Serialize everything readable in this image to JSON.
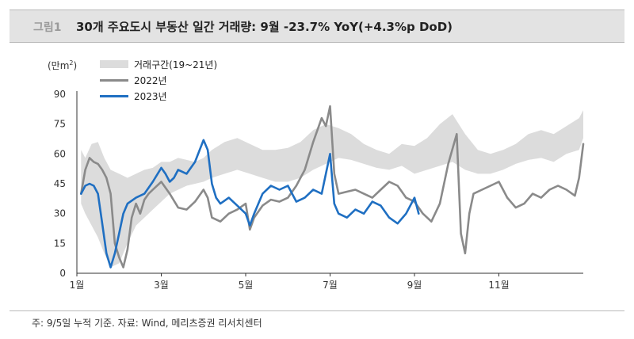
{
  "figure": {
    "number": "그림1",
    "title": "30개 주요도시 부동산 일간 거래량: 9월 -23.7% YoY(+4.3%p DoD)",
    "footnote": "주: 9/5일 누적 기준. 자료: Wind, 메리츠증권 리서치센터"
  },
  "colors": {
    "band": "#dcdcdc",
    "line_2022": "#8a8a8a",
    "line_2023": "#1f6fc2"
  },
  "chart_data": {
    "type": "line",
    "title": "30개 주요도시 부동산 일간 거래량: 9월 -23.7% YoY(+4.3%p DoD)",
    "unit": "(만m²)",
    "ylim": [
      0,
      90
    ],
    "yticks": [
      "0",
      "15",
      "30",
      "45",
      "60",
      "75",
      "90"
    ],
    "xlim": [
      1,
      13
    ],
    "xticks": [
      {
        "label": "1월",
        "value": 1
      },
      {
        "label": "3월",
        "value": 3
      },
      {
        "label": "5월",
        "value": 5
      },
      {
        "label": "7월",
        "value": 7
      },
      {
        "label": "9월",
        "value": 9
      },
      {
        "label": "11월",
        "value": 11
      }
    ],
    "grid": false,
    "legend_position": "top-left",
    "band": {
      "name": "거래구간(19~21년)",
      "x": [
        1.1,
        1.2,
        1.35,
        1.5,
        1.65,
        1.8,
        2.0,
        2.2,
        2.4,
        2.6,
        2.8,
        3.0,
        3.2,
        3.4,
        3.6,
        3.8,
        4.0,
        4.2,
        4.5,
        4.8,
        5.1,
        5.4,
        5.7,
        6.0,
        6.3,
        6.6,
        6.9,
        7.2,
        7.5,
        7.8,
        8.1,
        8.4,
        8.7,
        9.0,
        9.3,
        9.6,
        9.9,
        10.2,
        10.5,
        10.8,
        11.1,
        11.4,
        11.7,
        12.0,
        12.3,
        12.6,
        12.9,
        13.0
      ],
      "upper": [
        62,
        58,
        65,
        66,
        58,
        52,
        50,
        48,
        50,
        52,
        53,
        56,
        56,
        58,
        57,
        56,
        58,
        62,
        66,
        68,
        65,
        62,
        62,
        63,
        66,
        72,
        75,
        73,
        70,
        65,
        62,
        60,
        65,
        64,
        68,
        75,
        80,
        70,
        62,
        60,
        62,
        65,
        70,
        72,
        70,
        74,
        78,
        82
      ],
      "lower": [
        35,
        30,
        24,
        18,
        10,
        3,
        5,
        15,
        24,
        28,
        32,
        36,
        40,
        42,
        44,
        45,
        46,
        48,
        50,
        52,
        50,
        48,
        46,
        46,
        48,
        52,
        55,
        58,
        57,
        55,
        53,
        52,
        54,
        50,
        52,
        54,
        56,
        52,
        50,
        50,
        52,
        55,
        57,
        58,
        56,
        60,
        62,
        68
      ]
    },
    "series": [
      {
        "name": "2022년",
        "x": [
          1.1,
          1.2,
          1.3,
          1.4,
          1.5,
          1.6,
          1.7,
          1.8,
          1.9,
          2.0,
          2.1,
          2.2,
          2.3,
          2.4,
          2.5,
          2.6,
          2.7,
          2.8,
          3.0,
          3.2,
          3.4,
          3.6,
          3.8,
          4.0,
          4.1,
          4.2,
          4.4,
          4.6,
          4.8,
          5.0,
          5.1,
          5.2,
          5.4,
          5.6,
          5.8,
          6.0,
          6.2,
          6.4,
          6.6,
          6.8,
          6.9,
          7.0,
          7.1,
          7.2,
          7.4,
          7.6,
          7.8,
          8.0,
          8.2,
          8.4,
          8.6,
          8.8,
          9.0,
          9.2,
          9.4,
          9.6,
          9.8,
          10.0,
          10.1,
          10.2,
          10.3,
          10.4,
          10.6,
          10.8,
          11.0,
          11.2,
          11.4,
          11.6,
          11.8,
          12.0,
          12.2,
          12.4,
          12.6,
          12.8,
          12.9,
          13.0
        ],
        "values": [
          40,
          52,
          58,
          56,
          55,
          52,
          48,
          40,
          15,
          8,
          3,
          12,
          28,
          35,
          30,
          37,
          40,
          42,
          46,
          40,
          33,
          32,
          36,
          42,
          38,
          28,
          26,
          30,
          32,
          35,
          22,
          28,
          34,
          37,
          36,
          38,
          44,
          52,
          66,
          78,
          74,
          84,
          50,
          40,
          41,
          42,
          40,
          38,
          42,
          46,
          44,
          38,
          36,
          30,
          26,
          35,
          55,
          70,
          20,
          10,
          30,
          40,
          42,
          44,
          46,
          38,
          33,
          35,
          40,
          38,
          42,
          44,
          42,
          39,
          48,
          65
        ]
      },
      {
        "name": "2023년",
        "x": [
          1.1,
          1.2,
          1.3,
          1.4,
          1.5,
          1.6,
          1.7,
          1.8,
          1.9,
          2.0,
          2.1,
          2.2,
          2.4,
          2.6,
          2.8,
          3.0,
          3.1,
          3.2,
          3.3,
          3.4,
          3.6,
          3.8,
          4.0,
          4.1,
          4.2,
          4.3,
          4.4,
          4.6,
          4.8,
          5.0,
          5.1,
          5.2,
          5.4,
          5.6,
          5.8,
          6.0,
          6.2,
          6.4,
          6.6,
          6.8,
          6.9,
          7.0,
          7.1,
          7.2,
          7.4,
          7.6,
          7.8,
          8.0,
          8.2,
          8.4,
          8.6,
          8.8,
          9.0,
          9.1
        ],
        "values": [
          40,
          44,
          45,
          44,
          40,
          25,
          10,
          3,
          10,
          20,
          30,
          35,
          38,
          40,
          46,
          53,
          50,
          46,
          48,
          52,
          50,
          56,
          67,
          62,
          45,
          38,
          35,
          38,
          34,
          30,
          24,
          30,
          40,
          44,
          42,
          44,
          36,
          38,
          42,
          40,
          50,
          60,
          35,
          30,
          28,
          32,
          30,
          36,
          34,
          28,
          25,
          30,
          38,
          30
        ]
      }
    ]
  }
}
